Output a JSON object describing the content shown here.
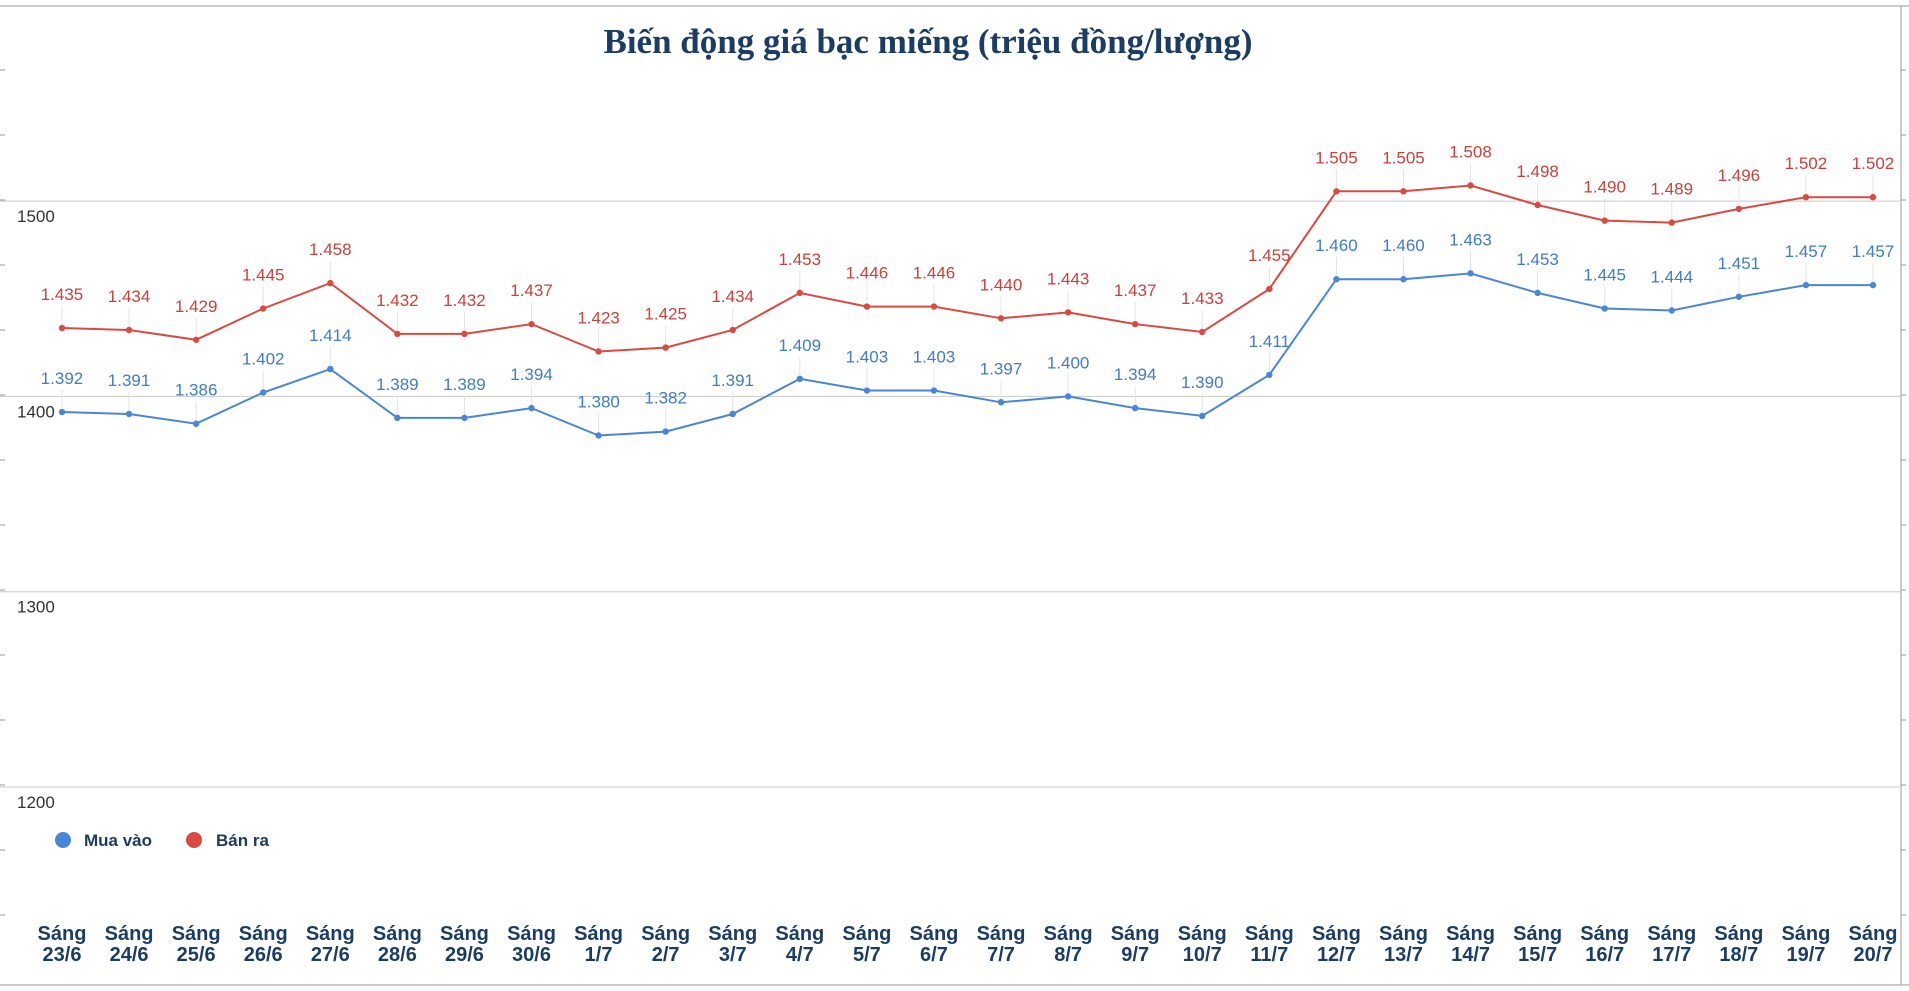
{
  "chart_data": {
    "type": "line",
    "title": "Biến động giá bạc miếng (triệu đồng/lượng)",
    "xlabel": "",
    "ylabel": "",
    "ylim": [
      1100,
      1600
    ],
    "yticks": [
      1200,
      1300,
      1400,
      1500
    ],
    "grid": true,
    "legend_position": "bottom-left",
    "categories": [
      [
        "Sáng",
        "23/6"
      ],
      [
        "Sáng",
        "24/6"
      ],
      [
        "Sáng",
        "25/6"
      ],
      [
        "Sáng",
        "26/6"
      ],
      [
        "Sáng",
        "27/6"
      ],
      [
        "Sáng",
        "28/6"
      ],
      [
        "Sáng",
        "29/6"
      ],
      [
        "Sáng",
        "30/6"
      ],
      [
        "Sáng",
        "1/7"
      ],
      [
        "Sáng",
        "2/7"
      ],
      [
        "Sáng",
        "3/7"
      ],
      [
        "Sáng",
        "4/7"
      ],
      [
        "Sáng",
        "5/7"
      ],
      [
        "Sáng",
        "6/7"
      ],
      [
        "Sáng",
        "7/7"
      ],
      [
        "Sáng",
        "8/7"
      ],
      [
        "Sáng",
        "9/7"
      ],
      [
        "Sáng",
        "10/7"
      ],
      [
        "Sáng",
        "11/7"
      ],
      [
        "Sáng",
        "12/7"
      ],
      [
        "Sáng",
        "13/7"
      ],
      [
        "Sáng",
        "14/7"
      ],
      [
        "Sáng",
        "15/7"
      ],
      [
        "Sáng",
        "16/7"
      ],
      [
        "Sáng",
        "17/7"
      ],
      [
        "Sáng",
        "18/7"
      ],
      [
        "Sáng",
        "19/7"
      ],
      [
        "Sáng",
        "20/7"
      ]
    ],
    "series": [
      {
        "name": "Mua vào",
        "color": "#4a86d8",
        "label_color": "#3f7cc9",
        "values": [
          1392,
          1391,
          1386,
          1402,
          1414,
          1389,
          1389,
          1394,
          1380,
          1382,
          1391,
          1409,
          1403,
          1403,
          1397,
          1400,
          1394,
          1390,
          1411,
          1460,
          1460,
          1463,
          1453,
          1445,
          1444,
          1451,
          1457,
          1457
        ],
        "labels": [
          "1.392",
          "1.391",
          "1.386",
          "1.402",
          "1.414",
          "1.389",
          "1.389",
          "1.394",
          "1.380",
          "1.382",
          "1.391",
          "1.409",
          "1.403",
          "1.403",
          "1.397",
          "1.400",
          "1.394",
          "1.390",
          "1.411",
          "1.460",
          "1.460",
          "1.463",
          "1.453",
          "1.445",
          "1.444",
          "1.451",
          "1.457",
          "1.457"
        ]
      },
      {
        "name": "Bán ra",
        "color": "#d94a42",
        "label_color": "#c9423a",
        "values": [
          1435,
          1434,
          1429,
          1445,
          1458,
          1432,
          1432,
          1437,
          1423,
          1425,
          1434,
          1453,
          1446,
          1446,
          1440,
          1443,
          1437,
          1433,
          1455,
          1505,
          1505,
          1508,
          1498,
          1490,
          1489,
          1496,
          1502,
          1502
        ],
        "labels": [
          "1.435",
          "1.434",
          "1.429",
          "1.445",
          "1.458",
          "1.432",
          "1.432",
          "1.437",
          "1.423",
          "1.425",
          "1.434",
          "1.453",
          "1.446",
          "1.446",
          "1.440",
          "1.443",
          "1.437",
          "1.433",
          "1.455",
          "1.505",
          "1.505",
          "1.508",
          "1.498",
          "1.490",
          "1.489",
          "1.496",
          "1.502",
          "1.502"
        ]
      }
    ]
  }
}
